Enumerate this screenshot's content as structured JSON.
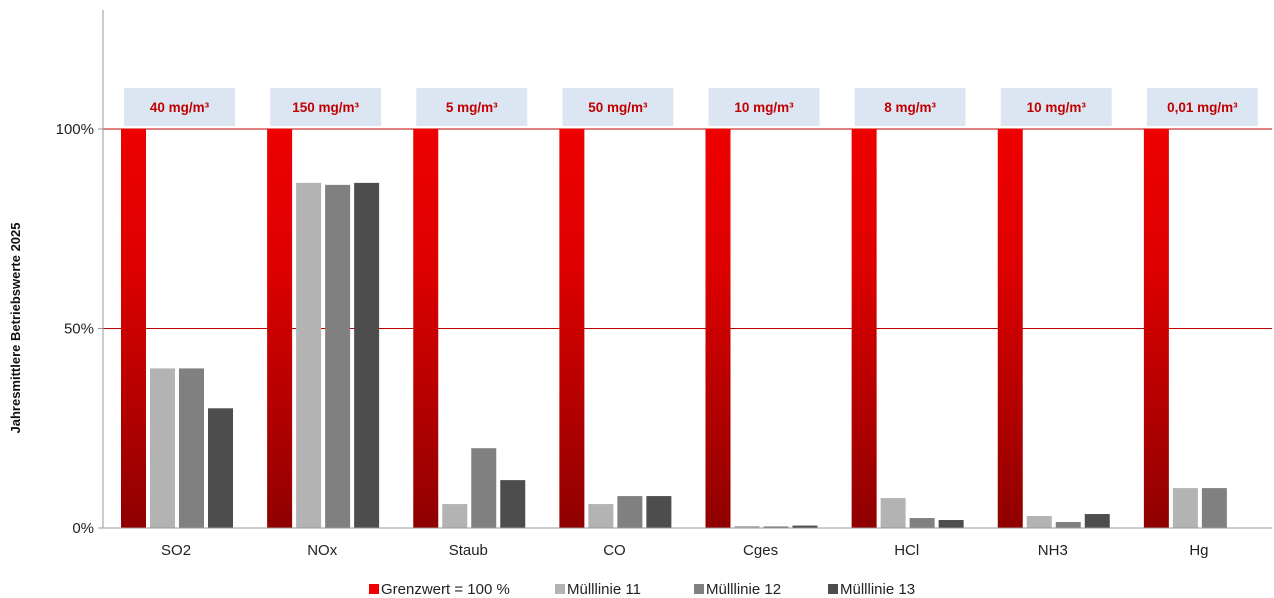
{
  "chart_data": {
    "type": "bar",
    "ylabel": "Jahresmittlere Betriebswerte 2025",
    "ylim": [
      0,
      100
    ],
    "y_ticks": [
      "0%",
      "50%",
      "100%"
    ],
    "y_tick_values": [
      0,
      50,
      100
    ],
    "reference_lines": [
      50,
      100
    ],
    "categories": [
      "SO2",
      "NOx",
      "Staub",
      "CO",
      "Cges",
      "HCl",
      "NH3",
      "Hg"
    ],
    "limit_labels": [
      "40 mg/m³",
      "150 mg/m³",
      "5 mg/m³",
      "50 mg/m³",
      "10 mg/m³",
      "8 mg/m³",
      "10 mg/m³",
      "0,01 mg/m³"
    ],
    "series": [
      {
        "name": "Grenzwert = 100 %",
        "values": [
          100,
          100,
          100,
          100,
          100,
          100,
          100,
          100
        ]
      },
      {
        "name": "Mülllinie 11",
        "values": [
          40,
          86.5,
          6,
          6,
          0.5,
          7.5,
          3,
          10
        ]
      },
      {
        "name": "Mülllinie 12",
        "values": [
          40,
          86,
          20,
          8,
          0.4,
          2.5,
          1.5,
          10
        ]
      },
      {
        "name": "Mülllinie 13",
        "values": [
          30,
          86.5,
          12,
          8,
          0.6,
          2,
          3.5,
          null
        ]
      }
    ],
    "legend_position": "bottom",
    "colors": {
      "limit_top": "#ee0000",
      "limit_bottom": "#8f0000",
      "series11": "#b3b3b3",
      "series12": "#808080",
      "series13": "#4d4d4d",
      "label_box": "#dce6f2",
      "ref_line": "#c00000"
    }
  }
}
